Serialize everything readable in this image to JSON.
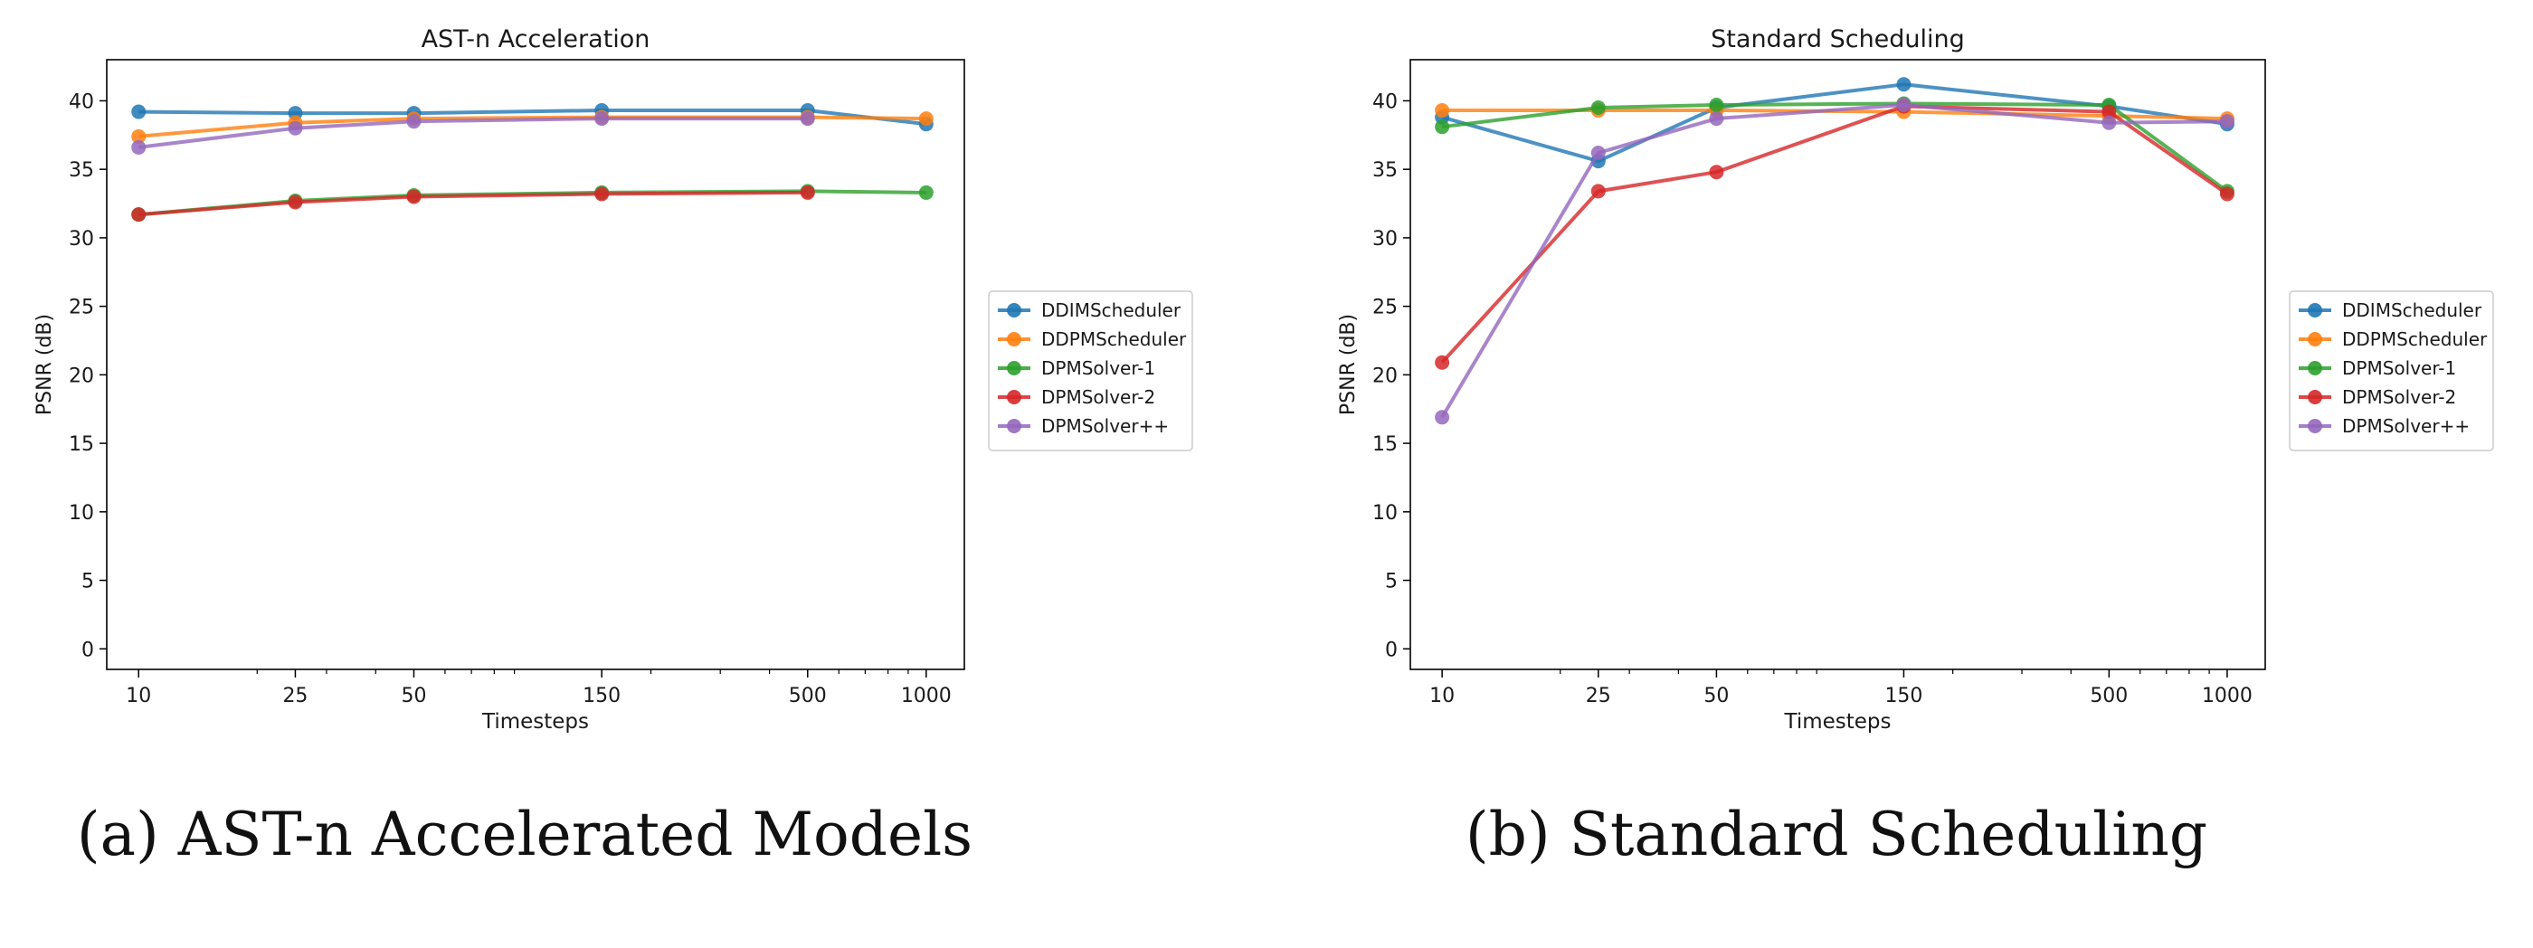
{
  "colors": {
    "DDIMScheduler": "#1f77b4",
    "DDPMScheduler": "#ff7f0e",
    "DPMSolver-1": "#2ca02c",
    "DPMSolver-2": "#d62728",
    "DPMSolver++": "#9467bd"
  },
  "chart_data": [
    {
      "type": "line",
      "title": "AST-n Acceleration",
      "caption": "(a) AST-n Accelerated Models",
      "xlabel": "Timesteps",
      "ylabel": "PSNR (dB)",
      "xscale": "log",
      "x": [
        10,
        25,
        50,
        150,
        500,
        1000
      ],
      "x_tick_labels": [
        "10",
        "25",
        "50",
        "150",
        "500",
        "1000"
      ],
      "ylim": [
        -1.5,
        43
      ],
      "y_ticks": [
        0,
        5,
        10,
        15,
        20,
        25,
        30,
        35,
        40
      ],
      "grid": false,
      "legend_position": "outside-right",
      "series": [
        {
          "name": "DDIMScheduler",
          "values": [
            39.2,
            39.1,
            39.1,
            39.3,
            39.3,
            38.3
          ]
        },
        {
          "name": "DDPMScheduler",
          "values": [
            37.4,
            38.4,
            38.7,
            38.8,
            38.8,
            38.7
          ]
        },
        {
          "name": "DPMSolver-1",
          "values": [
            31.7,
            32.7,
            33.1,
            33.3,
            33.4,
            33.3
          ]
        },
        {
          "name": "DPMSolver-2",
          "values": [
            31.7,
            32.6,
            33.0,
            33.2,
            33.3,
            null
          ]
        },
        {
          "name": "DPMSolver++",
          "values": [
            36.6,
            38.0,
            38.5,
            38.7,
            38.7,
            null
          ]
        }
      ]
    },
    {
      "type": "line",
      "title": "Standard Scheduling",
      "caption": "(b) Standard Scheduling",
      "xlabel": "Timesteps",
      "ylabel": "PSNR (dB)",
      "xscale": "log",
      "x": [
        10,
        25,
        50,
        150,
        500,
        1000
      ],
      "x_tick_labels": [
        "10",
        "25",
        "50",
        "150",
        "500",
        "1000"
      ],
      "ylim": [
        -1.5,
        43
      ],
      "y_ticks": [
        0,
        5,
        10,
        15,
        20,
        25,
        30,
        35,
        40
      ],
      "grid": false,
      "legend_position": "outside-right",
      "series": [
        {
          "name": "DDIMScheduler",
          "values": [
            38.8,
            35.6,
            39.5,
            41.2,
            39.6,
            38.3
          ]
        },
        {
          "name": "DDPMScheduler",
          "values": [
            39.3,
            39.3,
            39.3,
            39.2,
            38.9,
            38.7
          ]
        },
        {
          "name": "DPMSolver-1",
          "values": [
            38.1,
            39.5,
            39.7,
            39.8,
            39.7,
            33.4
          ]
        },
        {
          "name": "DPMSolver-2",
          "values": [
            20.9,
            33.4,
            34.8,
            39.6,
            39.2,
            33.2
          ]
        },
        {
          "name": "DPMSolver++",
          "values": [
            16.9,
            36.2,
            38.7,
            39.7,
            38.4,
            38.5
          ]
        }
      ]
    }
  ]
}
